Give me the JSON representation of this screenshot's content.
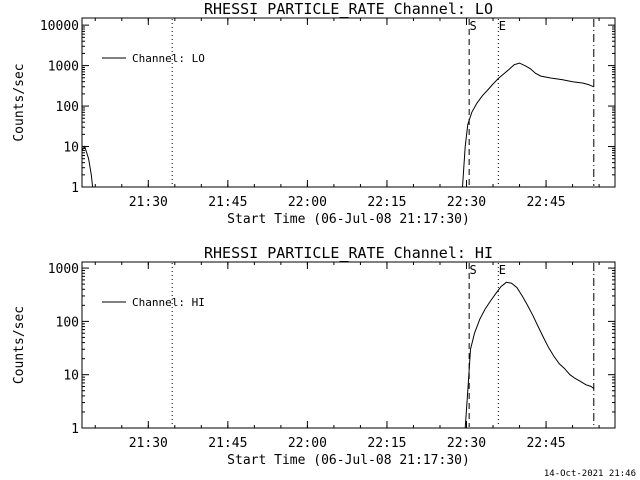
{
  "footer": {
    "timestamp": "14-Oct-2021 21:46"
  },
  "chart_data": [
    {
      "type": "line",
      "title": "RHESSI PARTICLE_RATE Channel: LO",
      "xlabel": "Start Time (06-Jul-08 21:17:30)",
      "ylabel": "Counts/sec",
      "yscale": "log",
      "xlim": [
        "21:17:30",
        "22:58:00"
      ],
      "ylim": [
        1,
        15000
      ],
      "x_ticks": [
        "21:30",
        "21:45",
        "22:00",
        "22:15",
        "22:30",
        "22:45"
      ],
      "y_ticks": [
        {
          "value": 1,
          "label": "1"
        },
        {
          "value": 10,
          "label": "10"
        },
        {
          "value": 100,
          "label": "100"
        },
        {
          "value": 1000,
          "label": "1000"
        },
        {
          "value": 10000,
          "label": "10000"
        }
      ],
      "legend": {
        "label": "Channel: LO",
        "position": "top-left"
      },
      "markers": [
        {
          "time": "21:34:30",
          "style": "dotted",
          "label": ""
        },
        {
          "time": "22:30:30",
          "style": "dashed",
          "label": "S"
        },
        {
          "time": "22:36:00",
          "style": "dotted",
          "label": "E"
        },
        {
          "time": "22:54:00",
          "style": "dashdot",
          "label": ""
        }
      ],
      "series": [
        {
          "name": "Channel: LO",
          "segments": [
            [
              [
                "21:17:30",
                8
              ],
              [
                "21:18:00",
                10
              ],
              [
                "21:18:45",
                5
              ],
              [
                "21:19:15",
                2
              ],
              [
                "21:19:30",
                1
              ]
            ],
            [
              [
                "22:29:15",
                1
              ],
              [
                "22:29:45",
                10
              ],
              [
                "22:30:15",
                35
              ],
              [
                "22:31:00",
                70
              ],
              [
                "22:32:00",
                120
              ],
              [
                "22:33:00",
                180
              ],
              [
                "22:34:00",
                250
              ],
              [
                "22:35:00",
                350
              ],
              [
                "22:36:00",
                480
              ],
              [
                "22:37:00",
                620
              ],
              [
                "22:38:00",
                800
              ],
              [
                "22:39:00",
                1050
              ],
              [
                "22:40:00",
                1150
              ],
              [
                "22:41:00",
                1000
              ],
              [
                "22:42:00",
                850
              ],
              [
                "22:43:00",
                650
              ],
              [
                "22:44:00",
                550
              ],
              [
                "22:46:00",
                490
              ],
              [
                "22:48:00",
                450
              ],
              [
                "22:50:00",
                400
              ],
              [
                "22:52:00",
                370
              ],
              [
                "22:53:00",
                340
              ],
              [
                "22:54:00",
                300
              ]
            ]
          ]
        }
      ]
    },
    {
      "type": "line",
      "title": "RHESSI PARTICLE_RATE Channel: HI",
      "xlabel": "Start Time (06-Jul-08 21:17:30)",
      "ylabel": "Counts/sec",
      "yscale": "log",
      "xlim": [
        "21:17:30",
        "22:58:00"
      ],
      "ylim": [
        1,
        1300
      ],
      "x_ticks": [
        "21:30",
        "21:45",
        "22:00",
        "22:15",
        "22:30",
        "22:45"
      ],
      "y_ticks": [
        {
          "value": 1,
          "label": "1"
        },
        {
          "value": 10,
          "label": "10"
        },
        {
          "value": 100,
          "label": "100"
        },
        {
          "value": 1000,
          "label": "1000"
        }
      ],
      "legend": {
        "label": "Channel: HI",
        "position": "top-left"
      },
      "markers": [
        {
          "time": "21:34:30",
          "style": "dotted",
          "label": ""
        },
        {
          "time": "22:30:30",
          "style": "dashed",
          "label": "S"
        },
        {
          "time": "22:36:00",
          "style": "dotted",
          "label": "E"
        },
        {
          "time": "22:54:00",
          "style": "dashdot",
          "label": ""
        }
      ],
      "series": [
        {
          "name": "Channel: HI",
          "segments": [
            [
              [
                "22:29:45",
                1
              ],
              [
                "22:30:15",
                5
              ],
              [
                "22:30:45",
                30
              ],
              [
                "22:31:30",
                60
              ],
              [
                "22:32:30",
                110
              ],
              [
                "22:33:30",
                170
              ],
              [
                "22:34:30",
                240
              ],
              [
                "22:35:30",
                330
              ],
              [
                "22:36:30",
                450
              ],
              [
                "22:37:30",
                540
              ],
              [
                "22:38:30",
                520
              ],
              [
                "22:39:30",
                430
              ],
              [
                "22:40:30",
                300
              ],
              [
                "22:41:30",
                200
              ],
              [
                "22:42:30",
                130
              ],
              [
                "22:43:30",
                80
              ],
              [
                "22:44:30",
                50
              ],
              [
                "22:45:30",
                32
              ],
              [
                "22:46:30",
                22
              ],
              [
                "22:47:30",
                16
              ],
              [
                "22:48:30",
                13
              ],
              [
                "22:49:30",
                10
              ],
              [
                "22:50:30",
                8.5
              ],
              [
                "22:51:30",
                7.5
              ],
              [
                "22:52:30",
                6.5
              ],
              [
                "22:53:30",
                6
              ],
              [
                "22:54:00",
                5.5
              ]
            ]
          ]
        }
      ]
    }
  ]
}
